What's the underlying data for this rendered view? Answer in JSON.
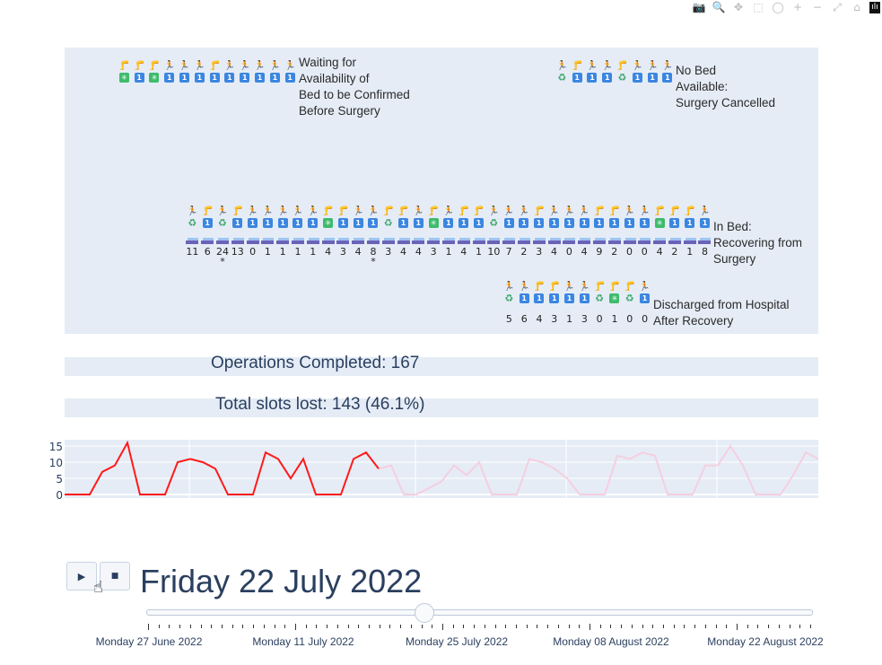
{
  "modebar": {
    "buttons": [
      {
        "name": "camera-icon",
        "glyph": "📷"
      },
      {
        "name": "zoom-icon",
        "glyph": "🔍"
      },
      {
        "name": "pan-icon",
        "glyph": "✥"
      },
      {
        "name": "box-select-icon",
        "glyph": "⬚"
      },
      {
        "name": "lasso-select-icon",
        "glyph": "◯"
      },
      {
        "name": "zoom-in-icon",
        "glyph": "+"
      },
      {
        "name": "zoom-out-icon",
        "glyph": "−"
      },
      {
        "name": "autoscale-icon",
        "glyph": "⤢"
      },
      {
        "name": "reset-axes-icon",
        "glyph": "⌂"
      },
      {
        "name": "plotly-logo-icon",
        "glyph": "ılı"
      }
    ]
  },
  "groups": {
    "waiting": {
      "label": [
        "Waiting for",
        "Availability of",
        "Bed to be Confirmed",
        "Before Surgery"
      ],
      "patients": [
        "l",
        "l",
        "l",
        "w",
        "w",
        "w",
        "l",
        "w",
        "w",
        "w",
        "w",
        "w"
      ],
      "badges": [
        "s",
        "1",
        "s",
        "1",
        "1",
        "1",
        "1",
        "1",
        "1",
        "1",
        "1",
        "1"
      ]
    },
    "cancelled": {
      "label": [
        "No Bed",
        "Available:",
        "Surgery Cancelled"
      ],
      "patients": [
        "w",
        "l",
        "w",
        "w",
        "l",
        "w",
        "w",
        "w"
      ],
      "badges": [
        "r",
        "1",
        "1",
        "1",
        "r",
        "1",
        "1",
        "1"
      ]
    },
    "in_bed": {
      "label": [
        "In Bed:",
        "Recovering from",
        "Surgery"
      ],
      "patients": [
        "w",
        "l",
        "w",
        "l",
        "w",
        "w",
        "w",
        "w",
        "w",
        "l",
        "l",
        "w",
        "w",
        "l",
        "l",
        "w",
        "l",
        "w",
        "l",
        "l",
        "w",
        "w",
        "w",
        "l",
        "w",
        "w",
        "w",
        "l",
        "l",
        "w",
        "w",
        "l",
        "l",
        "l",
        "w"
      ],
      "badges": [
        "r",
        "1",
        "r",
        "1",
        "1",
        "1",
        "1",
        "1",
        "1",
        "s",
        "1",
        "1",
        "1",
        "r",
        "1",
        "1",
        "s",
        "1",
        "1",
        "1",
        "r",
        "1",
        "1",
        "1",
        "1",
        "1",
        "1",
        "1",
        "1",
        "1",
        "1",
        "s",
        "1",
        "1",
        "1"
      ],
      "days": [
        "11",
        "6",
        "24",
        "13",
        "0",
        "1",
        "1",
        "1",
        "1",
        "4",
        "3",
        "4",
        "8",
        "3",
        "4",
        "4",
        "3",
        "1",
        "4",
        "1",
        "10",
        "7",
        "2",
        "3",
        "4",
        "0",
        "4",
        "9",
        "2",
        "0",
        "0",
        "4",
        "2",
        "1",
        "8"
      ],
      "starred": [
        2,
        12
      ]
    },
    "discharged": {
      "label": [
        "Discharged from Hospital",
        "After Recovery"
      ],
      "patients": [
        "w",
        "w",
        "l",
        "l",
        "w",
        "w",
        "l",
        "l",
        "l",
        "w"
      ],
      "badges": [
        "r",
        "1",
        "1",
        "1",
        "1",
        "1",
        "r",
        "s",
        "r",
        "1"
      ],
      "days": [
        "5",
        "6",
        "4",
        "3",
        "1",
        "3",
        "0",
        "1",
        "0",
        "0"
      ]
    }
  },
  "summary": {
    "operations_completed": "Operations Completed: 167",
    "slots_lost": "Total slots lost: 143 (46.1%)"
  },
  "chart_data": {
    "type": "line",
    "title": "",
    "xlabel": "",
    "ylabel": "",
    "ylim": [
      0,
      16
    ],
    "yticks": [
      0,
      5,
      10,
      15
    ],
    "series": [
      {
        "name": "past",
        "color": "#ff1a1a",
        "values": [
          0,
          0,
          0,
          7,
          9,
          16,
          0,
          0,
          0,
          10,
          11,
          10,
          8,
          0,
          0,
          0,
          13,
          11,
          5,
          11,
          0,
          0,
          0,
          11,
          13,
          8
        ]
      },
      {
        "name": "future",
        "color": "#f5cfe0",
        "values": [
          8,
          9,
          0,
          0,
          2,
          4,
          9,
          6,
          10,
          0,
          0,
          0,
          11,
          10,
          8,
          5,
          0,
          0,
          0,
          12,
          11,
          13,
          12,
          0,
          0,
          0,
          9,
          9,
          15,
          9,
          0,
          0,
          0,
          6,
          13,
          11
        ]
      }
    ]
  },
  "controls": {
    "play_glyph": "▶",
    "stop_glyph": "■",
    "current_date": "Friday 22 July 2022",
    "slider_labels": [
      "Monday 27 June 2022",
      "Monday 11 July 2022",
      "Monday 25 July 2022",
      "Monday 08 August 2022",
      "Monday 22 August 2022"
    ],
    "slider_position_pct": 40.4
  }
}
